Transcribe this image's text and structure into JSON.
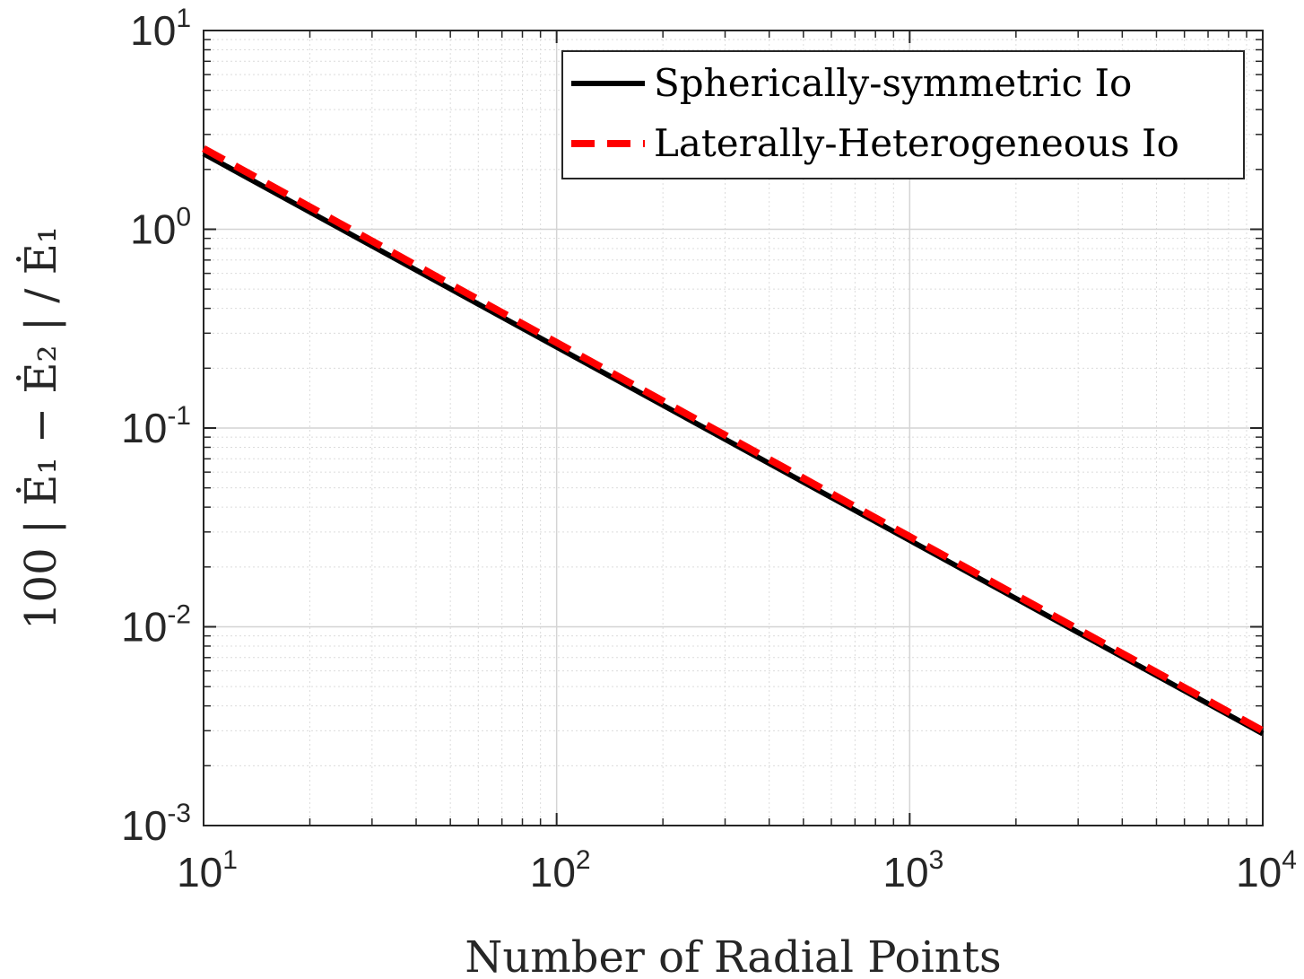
{
  "chart_data": {
    "type": "line",
    "title": "",
    "xlabel": "Number of Radial Points",
    "ylabel": "100 | Ė₁ − Ė₂ | / Ė₁",
    "xscale": "log",
    "yscale": "log",
    "xlim": [
      10,
      10000
    ],
    "ylim": [
      0.001,
      10
    ],
    "grid": true,
    "minor_grid": true,
    "legend_position": "top-right",
    "x_ticks": [
      {
        "base": "10",
        "exp": "1",
        "value": 10
      },
      {
        "base": "10",
        "exp": "2",
        "value": 100
      },
      {
        "base": "10",
        "exp": "3",
        "value": 1000
      },
      {
        "base": "10",
        "exp": "4",
        "value": 10000
      }
    ],
    "y_ticks": [
      {
        "base": "10",
        "exp": "-3",
        "value": 0.001
      },
      {
        "base": "10",
        "exp": "-2",
        "value": 0.01
      },
      {
        "base": "10",
        "exp": "-1",
        "value": 0.1
      },
      {
        "base": "10",
        "exp": "0",
        "value": 1
      },
      {
        "base": "10",
        "exp": "1",
        "value": 10
      }
    ],
    "series": [
      {
        "name": "Spherically-symmetric Io",
        "color": "#000000",
        "style": "solid",
        "x": [
          10,
          10000
        ],
        "y": [
          2.4,
          0.0029
        ]
      },
      {
        "name": "Laterally-Heterogeneous Io",
        "color": "#ff0000",
        "style": "dashed",
        "x": [
          10,
          10000
        ],
        "y": [
          2.55,
          0.003
        ]
      }
    ]
  }
}
